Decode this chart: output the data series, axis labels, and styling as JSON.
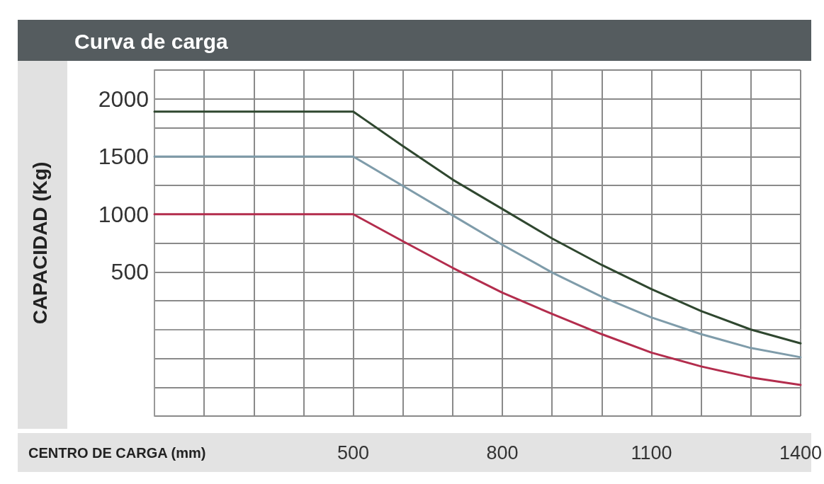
{
  "chart_data": {
    "type": "line",
    "title": "Curva de carga",
    "xlabel": "CENTRO DE CARGA (mm)",
    "ylabel": "CAPACIDAD (Kg)",
    "x": [
      100,
      500,
      600,
      700,
      800,
      900,
      1000,
      1100,
      1200,
      1300,
      1400
    ],
    "series": [
      {
        "color": "#2f472f",
        "values": [
          1890,
          1890,
          1590,
          1300,
          1045,
          790,
          560,
          350,
          160,
          0,
          -120
        ]
      },
      {
        "color": "#7f9caa",
        "values": [
          1500,
          1500,
          1245,
          990,
          735,
          495,
          285,
          105,
          -40,
          -160,
          -240
        ]
      },
      {
        "color": "#b32d4d",
        "values": [
          1000,
          1000,
          765,
          535,
          320,
          135,
          -40,
          -200,
          -320,
          -415,
          -480
        ]
      }
    ],
    "xlim": [
      100,
      1400
    ],
    "xticks": [
      {
        "value": 100,
        "label": null
      },
      {
        "value": 200,
        "label": null
      },
      {
        "value": 300,
        "label": null
      },
      {
        "value": 400,
        "label": null
      },
      500,
      {
        "value": 600,
        "label": null
      },
      {
        "value": 700,
        "label": null
      },
      800,
      {
        "value": 900,
        "label": null
      },
      {
        "value": 1000,
        "label": null
      },
      1100,
      {
        "value": 1200,
        "label": null
      },
      {
        "value": 1300,
        "label": null
      },
      1400
    ],
    "ylim": [
      -750,
      2250
    ],
    "yticks": [
      {
        "value": -750,
        "label": null
      },
      {
        "value": -500,
        "label": null
      },
      {
        "value": -250,
        "label": null
      },
      {
        "value": 0,
        "label": null
      },
      {
        "value": 250,
        "label": null
      },
      500,
      {
        "value": 750,
        "label": null
      },
      1000,
      {
        "value": 1250,
        "label": null
      },
      1500,
      {
        "value": 1750,
        "label": null
      },
      2000,
      {
        "value": 2250,
        "label": null
      }
    ],
    "grid": true,
    "marker": "none",
    "line_style": "solid"
  }
}
